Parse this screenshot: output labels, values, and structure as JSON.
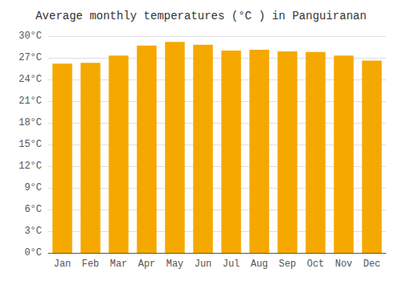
{
  "chart_data": {
    "type": "bar",
    "title": "Average monthly temperatures (°C ) in Panguiranan",
    "categories": [
      "Jan",
      "Feb",
      "Mar",
      "Apr",
      "May",
      "Jun",
      "Jul",
      "Aug",
      "Sep",
      "Oct",
      "Nov",
      "Dec"
    ],
    "values": [
      26.2,
      26.3,
      27.3,
      28.7,
      29.2,
      28.8,
      28.0,
      28.1,
      27.9,
      27.8,
      27.3,
      26.6
    ],
    "color": "#F5A800",
    "ylim": [
      0,
      30
    ],
    "yticks": [
      {
        "value": 0,
        "label": "0°C"
      },
      {
        "value": 3,
        "label": "3°C"
      },
      {
        "value": 6,
        "label": "6°C"
      },
      {
        "value": 9,
        "label": "9°C"
      },
      {
        "value": 12,
        "label": "12°C"
      },
      {
        "value": 15,
        "label": "15°C"
      },
      {
        "value": 18,
        "label": "18°C"
      },
      {
        "value": 21,
        "label": "21°C"
      },
      {
        "value": 24,
        "label": "24°C"
      },
      {
        "value": 27,
        "label": "27°C"
      },
      {
        "value": 30,
        "label": "30°C"
      }
    ],
    "grid": true
  }
}
